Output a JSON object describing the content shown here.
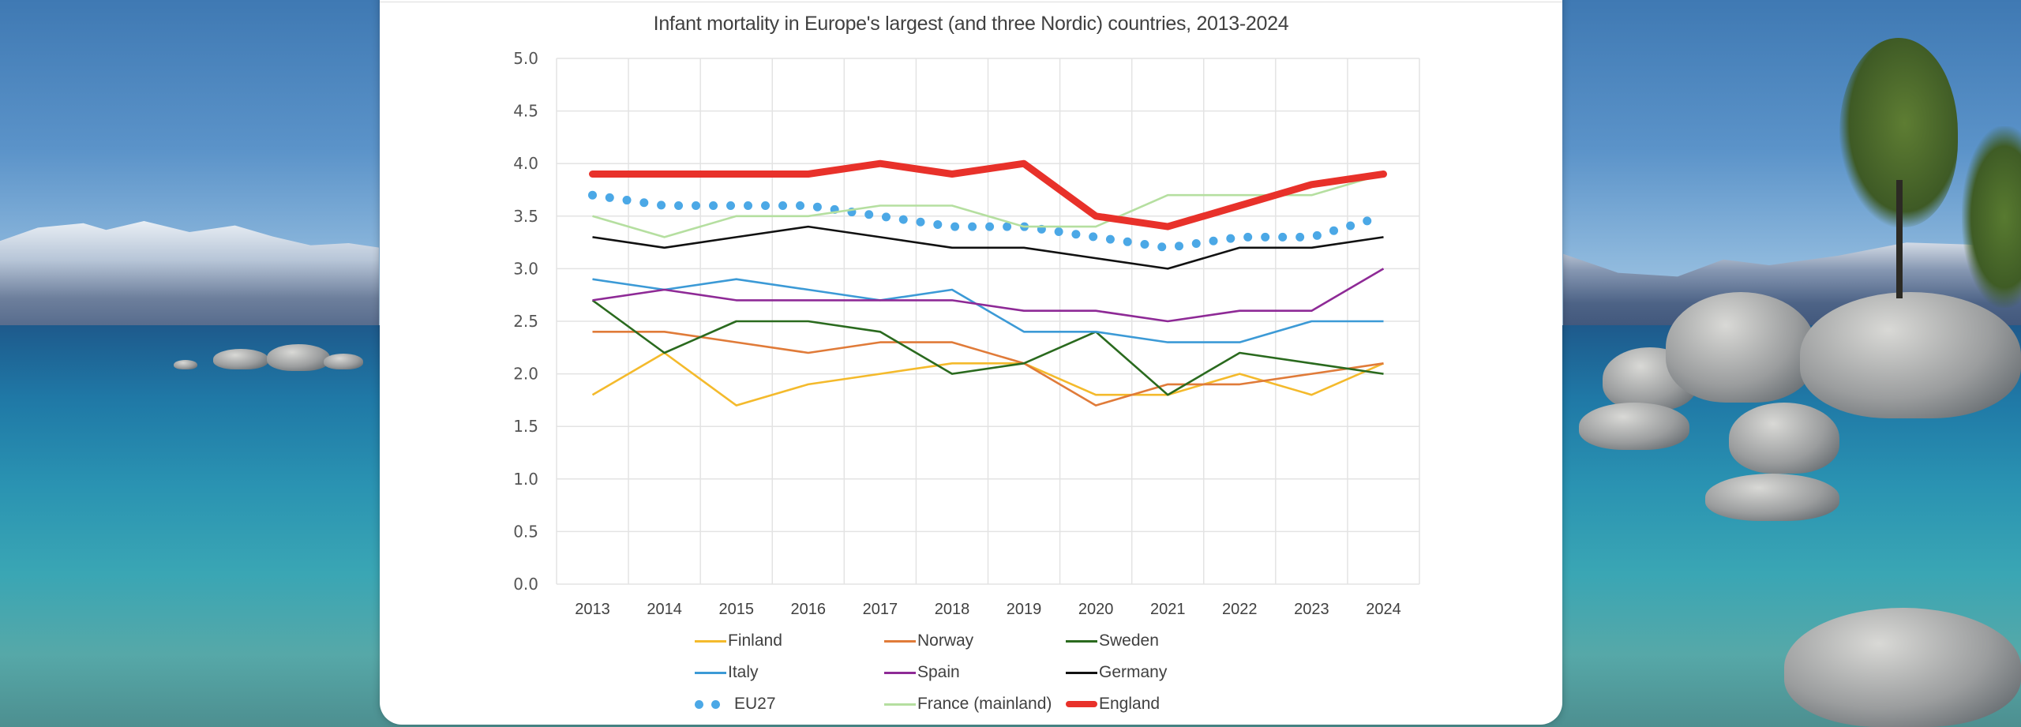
{
  "chart_data": {
    "type": "line",
    "title": "Infant mortality in Europe's largest (and three Nordic) countries, 2013-2024",
    "xlabel": "",
    "ylabel": "",
    "ylim": [
      0,
      5
    ],
    "yticks": [
      "0.0",
      "0.5",
      "1.0",
      "1.5",
      "2.0",
      "2.5",
      "3.0",
      "3.5",
      "4.0",
      "4.5",
      "5.0"
    ],
    "grid": true,
    "legend_position": "bottom",
    "categories": [
      "2013",
      "2014",
      "2015",
      "2016",
      "2017",
      "2018",
      "2019",
      "2020",
      "2021",
      "2022",
      "2023",
      "2024"
    ],
    "series": [
      {
        "name": "Finland",
        "color": "#F4BA2C",
        "style": "solid",
        "weight": "normal",
        "values": [
          1.8,
          2.2,
          1.7,
          1.9,
          2.0,
          2.1,
          2.1,
          1.8,
          1.8,
          2.0,
          1.8,
          2.1
        ]
      },
      {
        "name": "Norway",
        "color": "#E07B39",
        "style": "solid",
        "weight": "normal",
        "values": [
          2.4,
          2.4,
          2.3,
          2.2,
          2.3,
          2.3,
          2.1,
          1.7,
          1.9,
          1.9,
          2.0,
          2.1
        ]
      },
      {
        "name": "Sweden",
        "color": "#2A6A1E",
        "style": "solid",
        "weight": "normal",
        "values": [
          2.7,
          2.2,
          2.5,
          2.5,
          2.4,
          2.0,
          2.1,
          2.4,
          1.8,
          2.2,
          2.1,
          2.0
        ]
      },
      {
        "name": "Italy",
        "color": "#3C9AD6",
        "style": "solid",
        "weight": "normal",
        "values": [
          2.9,
          2.8,
          2.9,
          2.8,
          2.7,
          2.8,
          2.4,
          2.4,
          2.3,
          2.3,
          2.5,
          2.5
        ]
      },
      {
        "name": "Spain",
        "color": "#8E2A96",
        "style": "solid",
        "weight": "normal",
        "values": [
          2.7,
          2.8,
          2.7,
          2.7,
          2.7,
          2.7,
          2.6,
          2.6,
          2.5,
          2.6,
          2.6,
          3.0
        ]
      },
      {
        "name": "Germany",
        "color": "#111111",
        "style": "solid",
        "weight": "normal",
        "values": [
          3.3,
          3.2,
          3.3,
          3.4,
          3.3,
          3.2,
          3.2,
          3.1,
          3.0,
          3.2,
          3.2,
          3.3
        ]
      },
      {
        "name": "EU27",
        "color": "#4BA8E6",
        "style": "dotted",
        "weight": "heavy",
        "values": [
          3.7,
          3.6,
          3.6,
          3.6,
          3.5,
          3.4,
          3.4,
          3.3,
          3.2,
          3.3,
          3.3,
          3.5
        ]
      },
      {
        "name": "France (mainland)",
        "color": "#B5DFA0",
        "style": "solid",
        "weight": "normal",
        "values": [
          3.5,
          3.3,
          3.5,
          3.5,
          3.6,
          3.6,
          3.4,
          3.4,
          3.7,
          3.7,
          3.7,
          3.9
        ]
      },
      {
        "name": "England",
        "color": "#E8312A",
        "style": "solid",
        "weight": "heavy",
        "values": [
          3.9,
          3.9,
          3.9,
          3.9,
          4.0,
          3.9,
          4.0,
          3.5,
          3.4,
          3.6,
          3.8,
          3.9
        ]
      }
    ]
  }
}
